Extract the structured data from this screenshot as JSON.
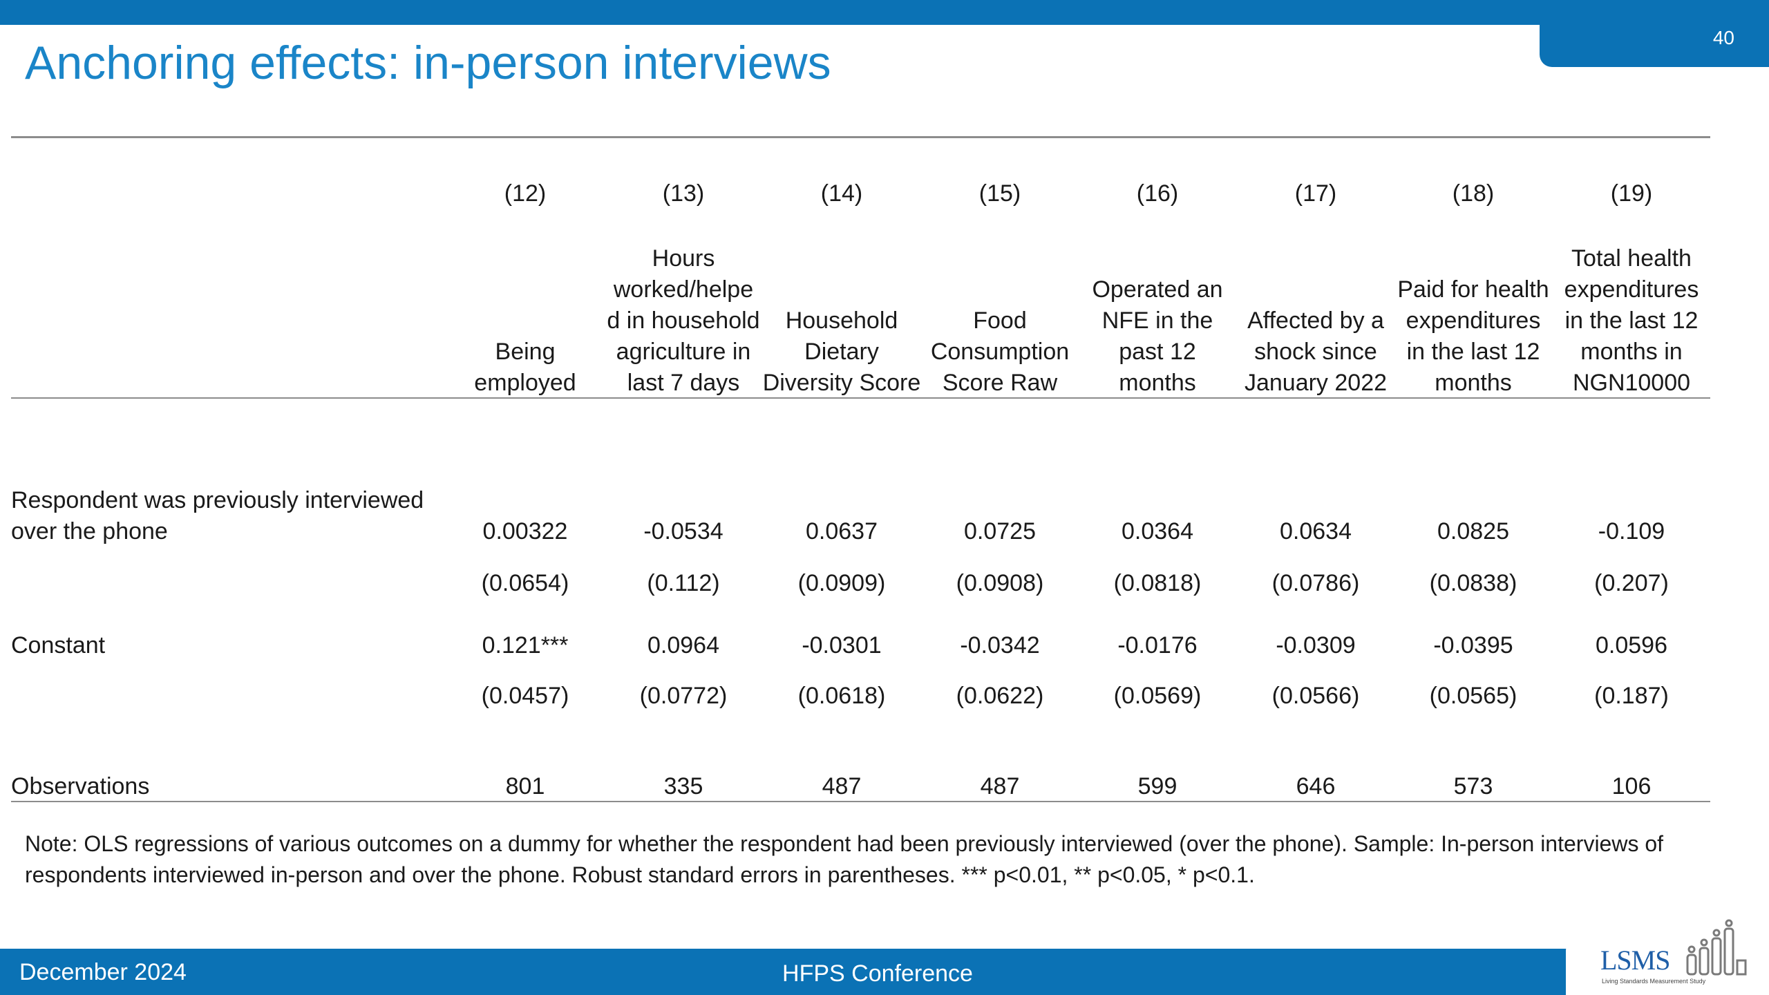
{
  "slide": {
    "title": "Anchoring effects: in-person interviews",
    "page_number": "40"
  },
  "table": {
    "column_numbers": [
      "(12)",
      "(13)",
      "(14)",
      "(15)",
      "(16)",
      "(17)",
      "(18)",
      "(19)"
    ],
    "column_headers": [
      [
        "Being",
        "employed"
      ],
      [
        "Hours",
        "worked/helpe",
        "d in household",
        "agriculture in",
        "last 7 days"
      ],
      [
        "Household",
        "Dietary",
        "Diversity Score"
      ],
      [
        "Food",
        "Consumption",
        "Score Raw"
      ],
      [
        "Operated an",
        "NFE in the",
        "past 12",
        "months"
      ],
      [
        "Affected by a",
        "shock since",
        "January 2022"
      ],
      [
        "Paid for health",
        "expenditures",
        "in the last 12",
        "months"
      ],
      [
        "Total health",
        "expenditures",
        "in the last 12",
        "months in",
        "NGN10000"
      ]
    ],
    "rows": [
      {
        "label_lines": [
          "Respondent was previously interviewed",
          "over the phone"
        ],
        "values": [
          "0.00322",
          "-0.0534",
          "0.0637",
          "0.0725",
          "0.0364",
          "0.0634",
          "0.0825",
          "-0.109"
        ],
        "se": [
          "(0.0654)",
          "(0.112)",
          "(0.0909)",
          "(0.0908)",
          "(0.0818)",
          "(0.0786)",
          "(0.0838)",
          "(0.207)"
        ]
      },
      {
        "label_lines": [
          "Constant"
        ],
        "values": [
          "0.121***",
          "0.0964",
          "-0.0301",
          "-0.0342",
          "-0.0176",
          "-0.0309",
          "-0.0395",
          "0.0596"
        ],
        "se": [
          "(0.0457)",
          "(0.0772)",
          "(0.0618)",
          "(0.0622)",
          "(0.0569)",
          "(0.0566)",
          "(0.0565)",
          "(0.187)"
        ]
      }
    ],
    "observations": {
      "label": "Observations",
      "values": [
        "801",
        "335",
        "487",
        "487",
        "599",
        "646",
        "573",
        "106"
      ]
    }
  },
  "note": "Note: OLS regressions of various outcomes on a dummy for whether the respondent had been previously interviewed (over the phone). Sample: In-person interviews of respondents interviewed in-person and over the phone. Robust standard errors in parentheses. *** p<0.01, ** p<0.05, * p<0.1.",
  "footer": {
    "date": "December 2024",
    "conference": "HFPS Conference",
    "logo_text": "LSMS",
    "logo_subtitle": "Living Standards Measurement Study"
  },
  "colors": {
    "brand_blue": "#0b72b5",
    "title_blue": "#1a85c8"
  }
}
